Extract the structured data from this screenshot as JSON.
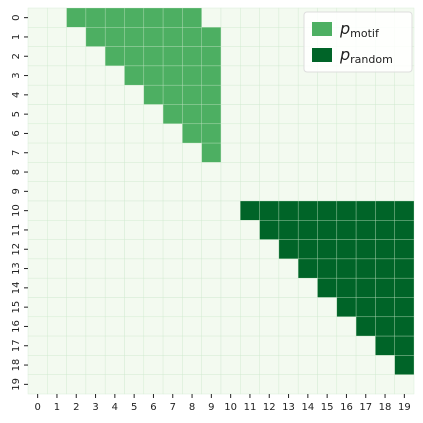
{
  "chart_data": {
    "type": "heatmap",
    "x_labels": [
      0,
      1,
      2,
      3,
      4,
      5,
      6,
      7,
      8,
      9,
      10,
      11,
      12,
      13,
      14,
      15,
      16,
      17,
      18,
      19
    ],
    "y_labels": [
      0,
      1,
      2,
      3,
      4,
      5,
      6,
      7,
      8,
      9,
      10,
      11,
      12,
      13,
      14,
      15,
      16,
      17,
      18,
      19
    ],
    "colors": [
      "#f3faf0",
      "#4daf62",
      "#006428"
    ],
    "legend": [
      {
        "symbol": "p",
        "subscript": "motif",
        "value": 1
      },
      {
        "symbol": "p",
        "subscript": "random",
        "value": 2
      }
    ],
    "legend_position": "upper right",
    "matrix": [
      [
        0,
        0,
        1,
        1,
        1,
        1,
        1,
        1,
        1,
        0,
        0,
        0,
        0,
        0,
        0,
        0,
        0,
        0,
        0,
        0
      ],
      [
        0,
        0,
        0,
        1,
        1,
        1,
        1,
        1,
        1,
        1,
        0,
        0,
        0,
        0,
        0,
        0,
        0,
        0,
        0,
        0
      ],
      [
        0,
        0,
        0,
        0,
        1,
        1,
        1,
        1,
        1,
        1,
        0,
        0,
        0,
        0,
        0,
        0,
        0,
        0,
        0,
        0
      ],
      [
        0,
        0,
        0,
        0,
        0,
        1,
        1,
        1,
        1,
        1,
        0,
        0,
        0,
        0,
        0,
        0,
        0,
        0,
        0,
        0
      ],
      [
        0,
        0,
        0,
        0,
        0,
        0,
        1,
        1,
        1,
        1,
        0,
        0,
        0,
        0,
        0,
        0,
        0,
        0,
        0,
        0
      ],
      [
        0,
        0,
        0,
        0,
        0,
        0,
        0,
        1,
        1,
        1,
        0,
        0,
        0,
        0,
        0,
        0,
        0,
        0,
        0,
        0
      ],
      [
        0,
        0,
        0,
        0,
        0,
        0,
        0,
        0,
        1,
        1,
        0,
        0,
        0,
        0,
        0,
        0,
        0,
        0,
        0,
        0
      ],
      [
        0,
        0,
        0,
        0,
        0,
        0,
        0,
        0,
        0,
        1,
        0,
        0,
        0,
        0,
        0,
        0,
        0,
        0,
        0,
        0
      ],
      [
        0,
        0,
        0,
        0,
        0,
        0,
        0,
        0,
        0,
        0,
        0,
        0,
        0,
        0,
        0,
        0,
        0,
        0,
        0,
        0
      ],
      [
        0,
        0,
        0,
        0,
        0,
        0,
        0,
        0,
        0,
        0,
        0,
        0,
        0,
        0,
        0,
        0,
        0,
        0,
        0,
        0
      ],
      [
        0,
        0,
        0,
        0,
        0,
        0,
        0,
        0,
        0,
        0,
        0,
        2,
        2,
        2,
        2,
        2,
        2,
        2,
        2,
        2
      ],
      [
        0,
        0,
        0,
        0,
        0,
        0,
        0,
        0,
        0,
        0,
        0,
        0,
        2,
        2,
        2,
        2,
        2,
        2,
        2,
        2
      ],
      [
        0,
        0,
        0,
        0,
        0,
        0,
        0,
        0,
        0,
        0,
        0,
        0,
        0,
        2,
        2,
        2,
        2,
        2,
        2,
        2
      ],
      [
        0,
        0,
        0,
        0,
        0,
        0,
        0,
        0,
        0,
        0,
        0,
        0,
        0,
        0,
        2,
        2,
        2,
        2,
        2,
        2
      ],
      [
        0,
        0,
        0,
        0,
        0,
        0,
        0,
        0,
        0,
        0,
        0,
        0,
        0,
        0,
        0,
        2,
        2,
        2,
        2,
        2
      ],
      [
        0,
        0,
        0,
        0,
        0,
        0,
        0,
        0,
        0,
        0,
        0,
        0,
        0,
        0,
        0,
        0,
        2,
        2,
        2,
        2
      ],
      [
        0,
        0,
        0,
        0,
        0,
        0,
        0,
        0,
        0,
        0,
        0,
        0,
        0,
        0,
        0,
        0,
        0,
        2,
        2,
        2
      ],
      [
        0,
        0,
        0,
        0,
        0,
        0,
        0,
        0,
        0,
        0,
        0,
        0,
        0,
        0,
        0,
        0,
        0,
        0,
        2,
        2
      ],
      [
        0,
        0,
        0,
        0,
        0,
        0,
        0,
        0,
        0,
        0,
        0,
        0,
        0,
        0,
        0,
        0,
        0,
        0,
        0,
        2
      ],
      [
        0,
        0,
        0,
        0,
        0,
        0,
        0,
        0,
        0,
        0,
        0,
        0,
        0,
        0,
        0,
        0,
        0,
        0,
        0,
        0
      ]
    ]
  }
}
